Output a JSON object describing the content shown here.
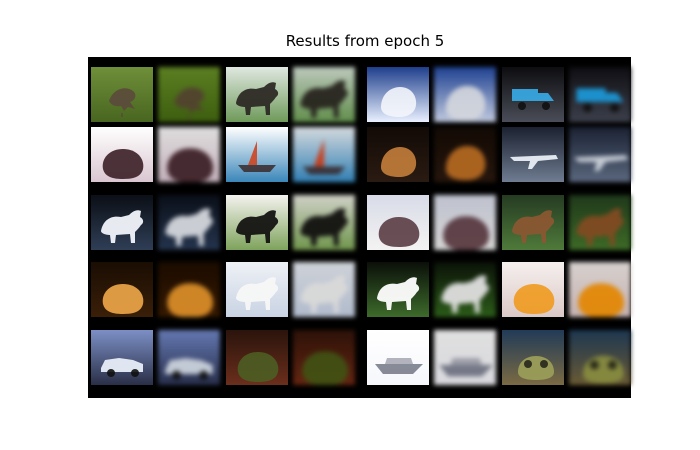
{
  "figure": {
    "title": "Results from epoch 5"
  },
  "grid": {
    "rows": 5,
    "cols": 4,
    "layout_note_pairs": "each cell shows an original image followed by its reconstruction",
    "pairs": [
      [
        {
          "subject": "bird",
          "bg1": "#6f8f3a",
          "bg2": "#48661f",
          "fg": "#5b4a3c",
          "shape": "bird"
        },
        {
          "subject": "horse",
          "bg1": "#dfe8e0",
          "bg2": "#6f9a5a",
          "fg": "#2d2a25",
          "shape": "horse"
        },
        {
          "subject": "dog",
          "bg1": "#1e3f8c",
          "bg2": "#e9f0ff",
          "fg": "#f3f5fb",
          "shape": "animal"
        },
        {
          "subject": "truck",
          "bg1": "#0d0d10",
          "bg2": "#4a4d58",
          "fg": "#37a7df",
          "shape": "truck"
        }
      ],
      [
        {
          "subject": "person",
          "bg1": "#ffffff",
          "bg2": "#d9c6d0",
          "fg": "#3b1f26",
          "shape": "blob"
        },
        {
          "subject": "ship",
          "bg1": "#ffffff",
          "bg2": "#3a86b9",
          "fg": "#cb4b2a",
          "shape": "ship"
        },
        {
          "subject": "dog",
          "bg1": "#120a06",
          "bg2": "#2a1b12",
          "fg": "#c47e3b",
          "shape": "animal"
        },
        {
          "subject": "airplane",
          "bg1": "#1b2130",
          "bg2": "#6f7c91",
          "fg": "#e9eef6",
          "shape": "plane"
        }
      ],
      [
        {
          "subject": "horse",
          "bg1": "#0b0f16",
          "bg2": "#2f3e56",
          "fg": "#f2f5fb",
          "shape": "horse"
        },
        {
          "subject": "horse",
          "bg1": "#f4f2ee",
          "bg2": "#7ea35c",
          "fg": "#141312",
          "shape": "horse"
        },
        {
          "subject": "dog",
          "bg1": "#d8dbe8",
          "bg2": "#f4f3f2",
          "fg": "#5a3c44",
          "shape": "blob"
        },
        {
          "subject": "horse",
          "bg1": "#253b22",
          "bg2": "#4f7a3a",
          "fg": "#8a5732",
          "shape": "horse"
        }
      ],
      [
        {
          "subject": "cat",
          "bg1": "#1a0d03",
          "bg2": "#3a1f08",
          "fg": "#f0a84a",
          "shape": "blob"
        },
        {
          "subject": "horse",
          "bg1": "#eef1f6",
          "bg2": "#c9d3e3",
          "fg": "#f7f7f7",
          "shape": "horse"
        },
        {
          "subject": "horse",
          "bg1": "#0b0f09",
          "bg2": "#3d6b2b",
          "fg": "#ffffff",
          "shape": "horse"
        },
        {
          "subject": "frog",
          "bg1": "#f5f0ee",
          "bg2": "#dcc9c7",
          "fg": "#f09a1e",
          "shape": "blob"
        }
      ],
      [
        {
          "subject": "car",
          "bg1": "#7c8fc5",
          "bg2": "#2a2f47",
          "fg": "#e8eef8",
          "shape": "car"
        },
        {
          "subject": "frog",
          "bg1": "#2a140c",
          "bg2": "#6b2e1c",
          "fg": "#4d5d22",
          "shape": "blob"
        },
        {
          "subject": "ship",
          "bg1": "#ffffff",
          "bg2": "#f6f7fb",
          "fg": "#2a2e44",
          "shape": "ship2"
        },
        {
          "subject": "frog",
          "bg1": "#213b57",
          "bg2": "#7b6a43",
          "fg": "#9a9d58",
          "shape": "frog"
        }
      ]
    ]
  }
}
